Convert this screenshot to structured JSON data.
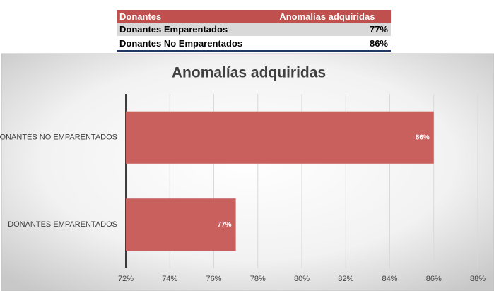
{
  "table": {
    "header": [
      "Donantes",
      "Anomalías adquiridas"
    ],
    "rows": [
      [
        "Donantes Emparentados",
        "77%"
      ],
      [
        "Donantes No Emparentados",
        "86%"
      ]
    ]
  },
  "chart_data": {
    "type": "hbar",
    "title": "Anomalías adquiridas",
    "categories": [
      "DONANTES NO EMPARENTADOS",
      "DONANTES EMPARENTADOS"
    ],
    "values": [
      86,
      77
    ],
    "value_labels": [
      "86%",
      "77%"
    ],
    "color": "#c9605e",
    "xlim": [
      72,
      88
    ],
    "xticks": [
      {
        "value": 72,
        "label": "72%"
      },
      {
        "value": 74,
        "label": "74%"
      },
      {
        "value": 76,
        "label": "76%"
      },
      {
        "value": 78,
        "label": "78%"
      },
      {
        "value": 80,
        "label": "80%"
      },
      {
        "value": 82,
        "label": "82%"
      },
      {
        "value": 84,
        "label": "84%"
      },
      {
        "value": 86,
        "label": "86%"
      },
      {
        "value": 88,
        "label": "88%"
      }
    ],
    "grid": true
  }
}
